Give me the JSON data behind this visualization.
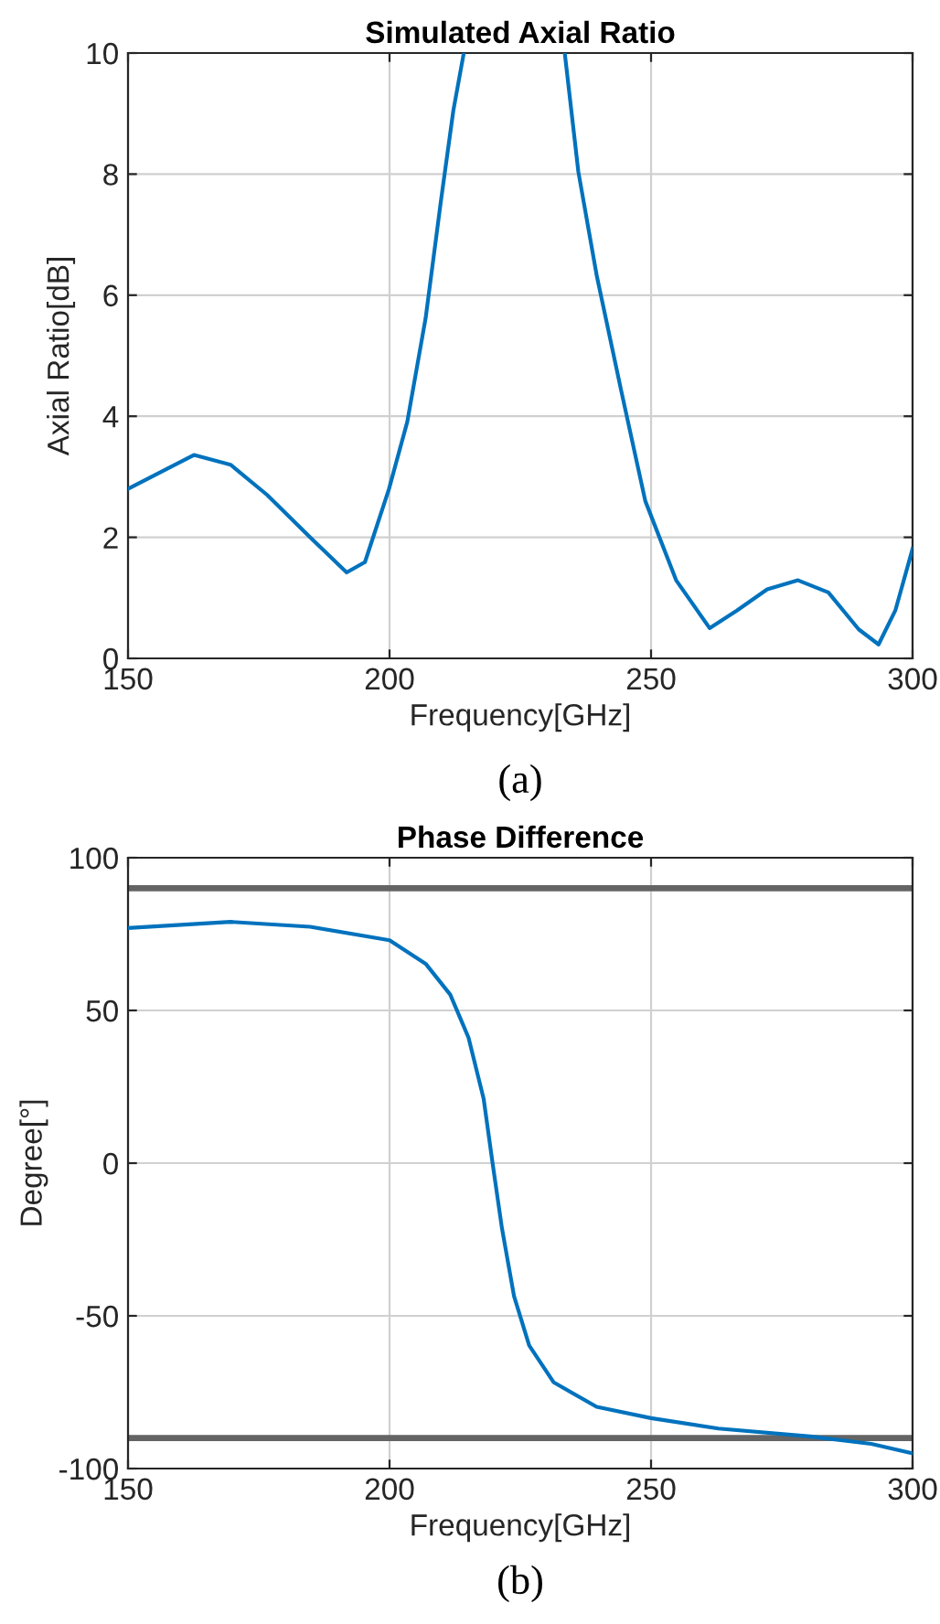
{
  "chart_data": [
    {
      "type": "line",
      "title": "Simulated Axial Ratio",
      "xlabel": "Frequency[GHz]",
      "ylabel": "Axial Ratio[dB]",
      "annotations": [
        "(a)"
      ],
      "xlim": [
        150,
        300
      ],
      "ylim": [
        0,
        10
      ],
      "xticks": [
        150,
        200,
        250,
        300
      ],
      "yticks": [
        0,
        2,
        4,
        6,
        8,
        10
      ],
      "grid": true,
      "series": [
        {
          "color": "#0072bd",
          "x": [
            150,
            162.6,
            169.6,
            176.6,
            184.8,
            191.8,
            195.3,
            199.9,
            203.4,
            206.9,
            209.8,
            212.2,
            214.2,
            null,
            233.5,
            236.1,
            239.6,
            244.3,
            248.9,
            254.8,
            261.2,
            266.4,
            272.2,
            278.1,
            283.9,
            289.7,
            293.5,
            296.7,
            300
          ],
          "values": [
            2.8,
            3.36,
            3.2,
            2.7,
            2.0,
            1.42,
            1.59,
            2.8,
            3.91,
            5.62,
            7.54,
            9.05,
            10,
            null,
            10,
            8.04,
            6.33,
            4.42,
            2.6,
            1.29,
            0.5,
            0.79,
            1.14,
            1.29,
            1.09,
            0.48,
            0.23,
            0.79,
            1.81
          ]
        }
      ]
    },
    {
      "type": "line",
      "title": "Phase Difference",
      "xlabel": "Frequency[GHz]",
      "ylabel": "Degree[°]",
      "annotations": [
        "(b)"
      ],
      "xlim": [
        150,
        300
      ],
      "ylim": [
        -100,
        100
      ],
      "xticks": [
        150,
        200,
        250,
        300
      ],
      "yticks": [
        {
          "value": -100,
          "label": "-100"
        },
        {
          "value": -50,
          "label": "-50"
        },
        0,
        50,
        100
      ],
      "grid": true,
      "ref_lines": [
        {
          "axis": "y",
          "value": 90,
          "color": "#646464"
        },
        {
          "axis": "y",
          "value": -90,
          "color": "#646464"
        }
      ],
      "series": [
        {
          "color": "#0072bd",
          "x": [
            150,
            169.6,
            184.8,
            200,
            206.9,
            211.6,
            215.1,
            218,
            219.7,
            221.5,
            223.8,
            226.7,
            231.4,
            239.6,
            250,
            262.9,
            280.4,
            292.1,
            300
          ],
          "values": [
            77,
            79,
            77.4,
            73,
            65.3,
            55.2,
            41.1,
            21,
            0,
            -21.4,
            -43.5,
            -59.7,
            -71.8,
            -79.8,
            -83.5,
            -86.9,
            -89.5,
            -91.9,
            -95
          ]
        }
      ]
    }
  ]
}
